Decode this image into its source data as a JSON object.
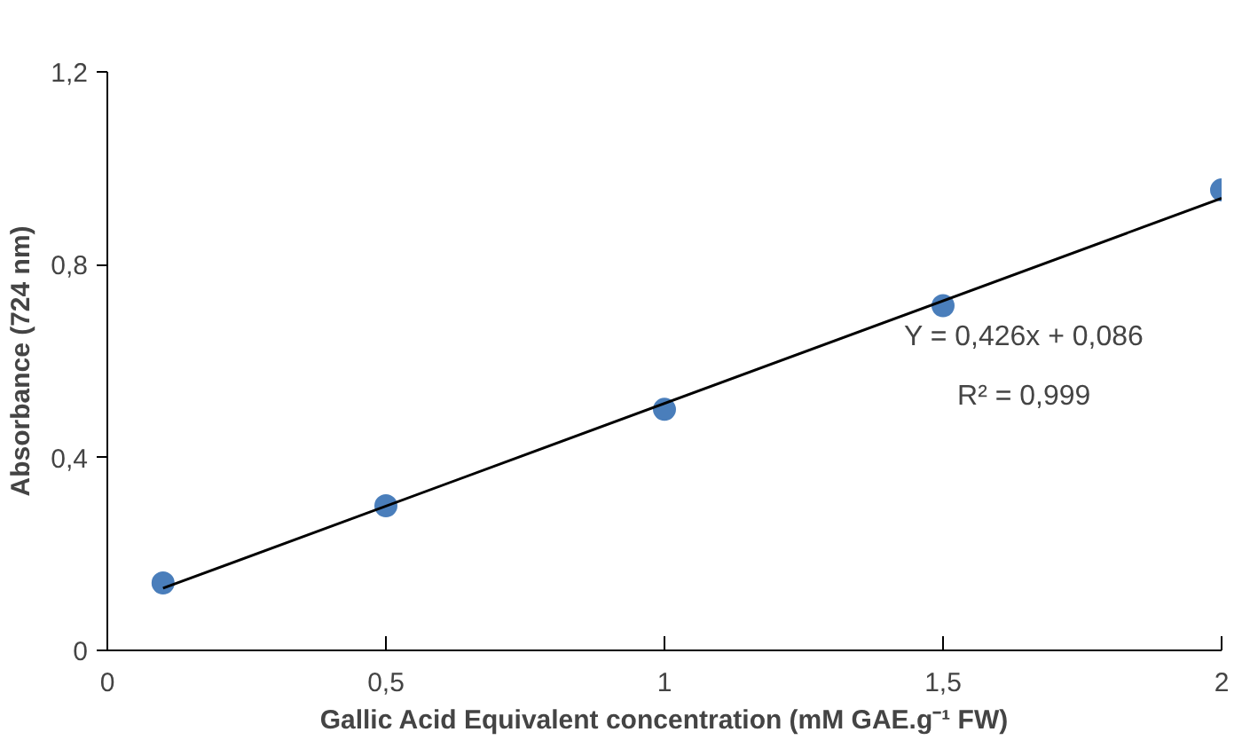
{
  "chart_data": {
    "type": "scatter",
    "xlabel": "Gallic Acid Equivalent concentration (mM GAE.g⁻¹ FW)",
    "ylabel": "Absorbance (724 nm)",
    "x": [
      0.1,
      0.5,
      1,
      1.5,
      2
    ],
    "series": [
      {
        "color": "#4a7ebb",
        "marker": "circle",
        "values": [
          0.14,
          0.3,
          0.5,
          0.715,
          0.955
        ]
      },
      {
        "type": "line",
        "color": "#000000",
        "x": [
          0.1,
          2
        ],
        "values": [
          0.129,
          0.938
        ]
      }
    ],
    "grid": false,
    "xlim": [
      0,
      2
    ],
    "ylim": [
      0,
      1.2
    ],
    "xticks": [
      0,
      {
        "value": 0.5,
        "label": "0,5"
      },
      1,
      {
        "value": 1.5,
        "label": "1,5"
      },
      2
    ],
    "yticks": [
      0,
      {
        "value": 0.4,
        "label": "0,4"
      },
      {
        "value": 0.8,
        "label": "0,8"
      },
      {
        "value": 1.2,
        "label": "1,2"
      }
    ],
    "annotations": [
      "Y = 0,426x + 0,086",
      "R² = 0,999"
    ]
  }
}
